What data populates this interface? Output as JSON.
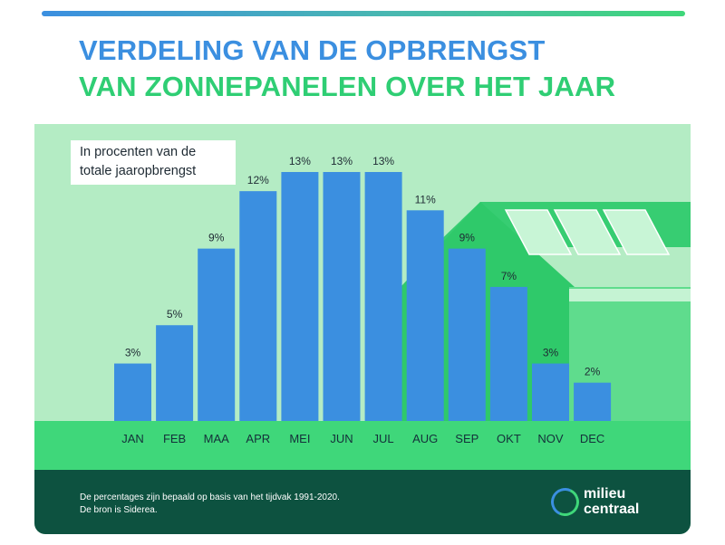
{
  "title": {
    "line1": "VERDELING VAN DE OPBRENGST",
    "line2": "VAN ZONNEPANELEN OVER HET JAAR"
  },
  "note": {
    "line1": "In procenten van de",
    "line2": "totale jaaropbrengst"
  },
  "chart_data": {
    "type": "bar",
    "title": "Verdeling van de opbrengst van zonnepanelen over het jaar",
    "subtitle": "In procenten van de totale jaaropbrengst",
    "categories": [
      "JAN",
      "FEB",
      "MAA",
      "APR",
      "MEI",
      "JUN",
      "JUL",
      "AUG",
      "SEP",
      "OKT",
      "NOV",
      "DEC"
    ],
    "values": [
      3,
      5,
      9,
      12,
      13,
      13,
      13,
      11,
      9,
      7,
      3,
      2
    ],
    "value_labels": [
      "3%",
      "5%",
      "9%",
      "12%",
      "13%",
      "13%",
      "13%",
      "11%",
      "9%",
      "7%",
      "3%",
      "2%"
    ],
    "unit": "%",
    "xlabel": "",
    "ylabel": "",
    "ylim": [
      0,
      13
    ],
    "grid": false
  },
  "footer": {
    "line1": "De percentages zijn bepaald op basis van het tijdvak 1991-2020.",
    "line2": "De bron is Siderea."
  },
  "logo": {
    "line1": "milieu",
    "line2": "centraal"
  },
  "colors": {
    "bar": "#3b8fe0",
    "title_blue": "#3b8fe0",
    "title_green": "#2fce74",
    "background_light": "#b4ecc4",
    "ground": "#3fd77a",
    "footer": "#0d5240",
    "house": "#37cd72"
  }
}
